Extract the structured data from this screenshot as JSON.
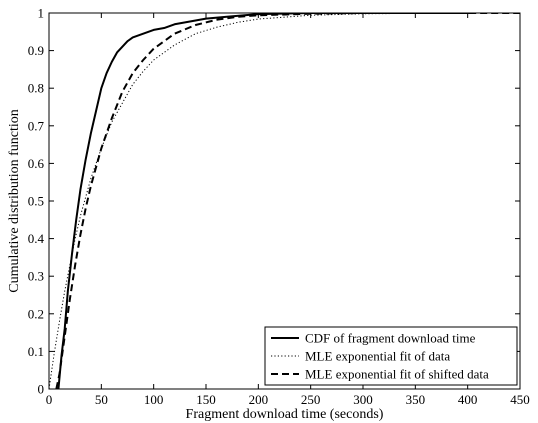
{
  "chart_data": {
    "type": "line",
    "title": "",
    "xlabel": "Fragment download time (seconds)",
    "ylabel": "Cumulative distribution function",
    "xlim": [
      0,
      450
    ],
    "ylim": [
      0,
      1
    ],
    "xticks": [
      "0",
      "50",
      "100",
      "150",
      "200",
      "250",
      "300",
      "350",
      "400",
      "450"
    ],
    "yticks": [
      "0",
      "0.1",
      "0.2",
      "0.3",
      "0.4",
      "0.5",
      "0.6",
      "0.7",
      "0.8",
      "0.9",
      "1"
    ],
    "grid": false,
    "legend_position": "bottom-right",
    "series": [
      {
        "name": "CDF of fragment download time",
        "style": "solid",
        "x": [
          9,
          12,
          15,
          18,
          22,
          26,
          30,
          35,
          40,
          45,
          50,
          55,
          60,
          65,
          70,
          75,
          80,
          85,
          90,
          95,
          100,
          110,
          120,
          130,
          140,
          150,
          170,
          200,
          250,
          300,
          350,
          405
        ],
        "y": [
          0,
          0.09,
          0.16,
          0.26,
          0.36,
          0.45,
          0.53,
          0.61,
          0.68,
          0.74,
          0.8,
          0.84,
          0.87,
          0.895,
          0.91,
          0.925,
          0.935,
          0.94,
          0.945,
          0.95,
          0.955,
          0.96,
          0.97,
          0.975,
          0.98,
          0.985,
          0.99,
          0.997,
          1.0,
          1.0,
          1.0,
          1.0
        ]
      },
      {
        "name": "MLE exponential fit of data",
        "style": "dotted",
        "x": [
          0,
          5,
          10,
          15,
          20,
          25,
          30,
          40,
          50,
          60,
          70,
          80,
          90,
          100,
          120,
          140,
          160,
          180,
          200,
          250,
          300,
          350,
          400
        ],
        "y": [
          0,
          0.095,
          0.18,
          0.26,
          0.33,
          0.4,
          0.46,
          0.56,
          0.64,
          0.71,
          0.76,
          0.81,
          0.845,
          0.875,
          0.915,
          0.945,
          0.962,
          0.975,
          0.984,
          0.994,
          0.998,
          0.999,
          1.0
        ]
      },
      {
        "name": "MLE exponential fit of shifted data",
        "style": "dashed",
        "x": [
          7,
          10,
          15,
          20,
          25,
          30,
          35,
          40,
          50,
          60,
          70,
          80,
          90,
          100,
          120,
          140,
          160,
          180,
          200,
          250,
          300,
          350,
          400,
          470
        ],
        "y": [
          0,
          0.04,
          0.14,
          0.24,
          0.33,
          0.41,
          0.48,
          0.54,
          0.64,
          0.72,
          0.79,
          0.84,
          0.875,
          0.905,
          0.945,
          0.968,
          0.982,
          0.99,
          0.994,
          0.998,
          1.0,
          1.0,
          1.0,
          1.0
        ]
      }
    ]
  },
  "colors": {
    "line": "#000000",
    "background": "#ffffff"
  }
}
